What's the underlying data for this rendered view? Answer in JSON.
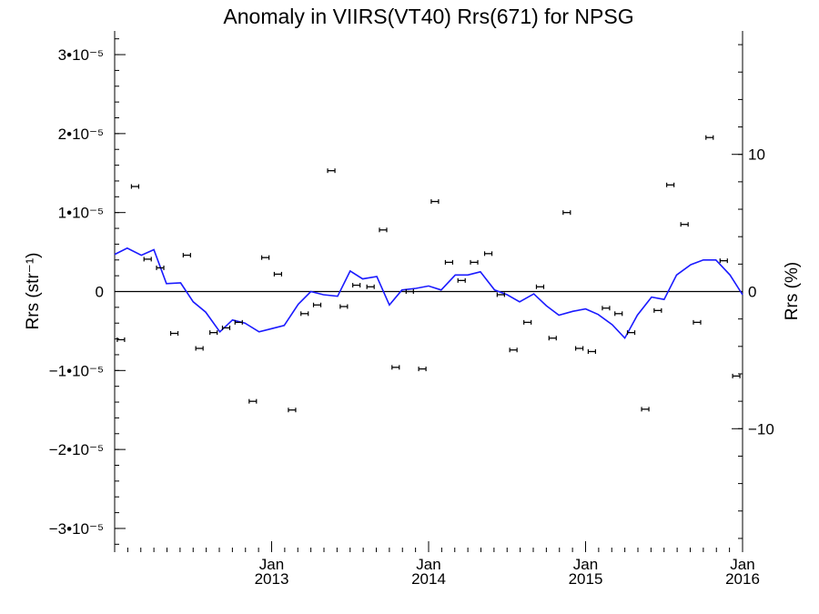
{
  "chart_data": {
    "type": "scatter",
    "title": "Anomaly in VIIRS(VT40) Rrs(671) for NPSG",
    "ylabel_left": "Rrs (str⁻¹)",
    "ylabel_right": "Rrs (%)",
    "xlim": [
      2012.0,
      2016.0
    ],
    "ylim_left": [
      -3.3e-05,
      3.3e-05
    ],
    "ylim_right": [
      -19,
      19
    ],
    "left_ticks": [
      {
        "value": 3e-05,
        "label": "3•10⁻⁵"
      },
      {
        "value": 2e-05,
        "label": "2•10⁻⁵"
      },
      {
        "value": 1e-05,
        "label": "1•10⁻⁵"
      },
      {
        "value": 0,
        "label": "0"
      },
      {
        "value": -1e-05,
        "label": "−1•10⁻⁵"
      },
      {
        "value": -2e-05,
        "label": "−2•10⁻⁵"
      },
      {
        "value": -3e-05,
        "label": "−3•10⁻⁵"
      }
    ],
    "right_ticks": [
      {
        "value": 10,
        "label": "10"
      },
      {
        "value": 0,
        "label": "0"
      },
      {
        "value": -10,
        "label": "−10"
      }
    ],
    "x_ticks": [
      {
        "value": 2013.0,
        "month": "Jan",
        "year": "2013"
      },
      {
        "value": 2014.0,
        "month": "Jan",
        "year": "2014"
      },
      {
        "value": 2015.0,
        "month": "Jan",
        "year": "2015"
      },
      {
        "value": 2016.0,
        "month": "Jan",
        "year": "2016"
      }
    ],
    "zero_line": true,
    "grid": false,
    "series": [
      {
        "type": "scatter_errorbar",
        "color": "#000000",
        "x": [
          2012.04,
          2012.13,
          2012.21,
          2012.29,
          2012.38,
          2012.46,
          2012.54,
          2012.63,
          2012.71,
          2012.79,
          2012.88,
          2012.96,
          2013.04,
          2013.13,
          2013.21,
          2013.29,
          2013.38,
          2013.46,
          2013.54,
          2013.63,
          2013.71,
          2013.79,
          2013.88,
          2013.96,
          2014.04,
          2014.13,
          2014.21,
          2014.29,
          2014.38,
          2014.46,
          2014.54,
          2014.63,
          2014.71,
          2014.79,
          2014.88,
          2014.96,
          2015.04,
          2015.13,
          2015.21,
          2015.29,
          2015.38,
          2015.46,
          2015.54,
          2015.63,
          2015.71,
          2015.79,
          2015.88,
          2015.96
        ],
        "y": [
          -6.1e-06,
          1.33e-05,
          4.1e-06,
          3e-06,
          -5.3e-06,
          4.6e-06,
          -7.2e-06,
          -5.2e-06,
          -4.6e-06,
          -3.9e-06,
          -1.39e-05,
          4.3e-06,
          2.2e-06,
          -1.5e-05,
          -2.8e-06,
          -1.7e-06,
          1.53e-05,
          -1.9e-06,
          8e-07,
          6e-07,
          7.8e-06,
          -9.6e-06,
          0.0,
          -9.8e-06,
          1.14e-05,
          3.7e-06,
          1.4e-06,
          3.7e-06,
          4.8e-06,
          -4e-07,
          -7.4e-06,
          -3.9e-06,
          6e-07,
          -5.9e-06,
          1e-05,
          -7.2e-06,
          -7.6e-06,
          -2.1e-06,
          -2.8e-06,
          -5.2e-06,
          -1.49e-05,
          -2.4e-06,
          1.35e-05,
          8.5e-06,
          -3.9e-06,
          1.95e-05,
          3.9e-06,
          -1.07e-05
        ]
      },
      {
        "type": "line",
        "color": "#1a1aff",
        "x": [
          2012.0,
          2012.08,
          2012.17,
          2012.25,
          2012.33,
          2012.42,
          2012.5,
          2012.58,
          2012.67,
          2012.75,
          2012.83,
          2012.92,
          2013.0,
          2013.08,
          2013.17,
          2013.25,
          2013.33,
          2013.42,
          2013.5,
          2013.58,
          2013.67,
          2013.75,
          2013.83,
          2013.92,
          2014.0,
          2014.08,
          2014.17,
          2014.25,
          2014.33,
          2014.42,
          2014.5,
          2014.58,
          2014.67,
          2014.75,
          2014.83,
          2014.92,
          2015.0,
          2015.08,
          2015.17,
          2015.25,
          2015.33,
          2015.42,
          2015.5,
          2015.58,
          2015.67,
          2015.75,
          2015.83,
          2015.92,
          2016.0
        ],
        "y": [
          4.7e-06,
          5.5e-06,
          4.6e-06,
          5.3e-06,
          1e-06,
          1.1e-06,
          -1.3e-06,
          -2.6e-06,
          -5.1e-06,
          -3.6e-06,
          -4e-06,
          -5.1e-06,
          -4.7e-06,
          -4.3e-06,
          -1.6e-06,
          0.0,
          -4e-07,
          -6e-07,
          2.6e-06,
          1.6e-06,
          1.9e-06,
          -1.7e-06,
          2e-07,
          4e-07,
          7e-07,
          2e-07,
          2.1e-06,
          2.1e-06,
          2.5e-06,
          2e-07,
          -4e-07,
          -1.3e-06,
          -3e-07,
          -1.8e-06,
          -3e-06,
          -2.5e-06,
          -2.2e-06,
          -2.9e-06,
          -4.2e-06,
          -5.9e-06,
          -3e-06,
          -7e-07,
          -1e-06,
          2.1e-06,
          3.4e-06,
          4e-06,
          4e-06,
          2.1e-06,
          -4e-07
        ]
      }
    ]
  }
}
